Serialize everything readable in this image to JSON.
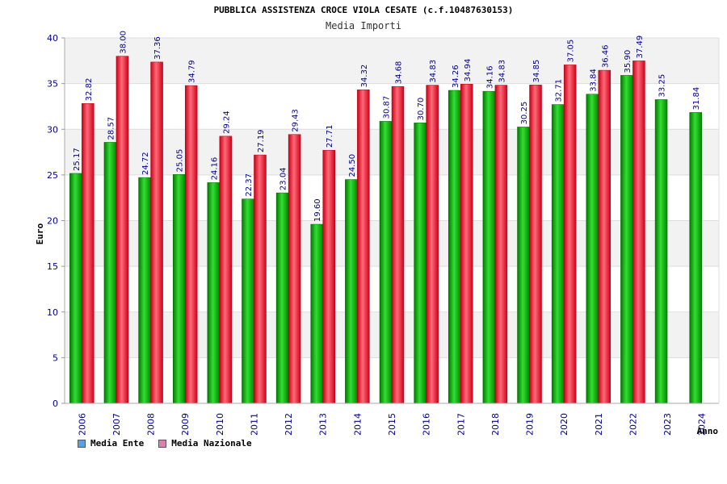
{
  "chart_data": {
    "type": "bar",
    "title": "PUBBLICA ASSISTENZA CROCE VIOLA CESATE (c.f.10487630153)",
    "subtitle": "Media Importi",
    "xlabel": "Anno",
    "ylabel": "Euro",
    "ylim": [
      0,
      40
    ],
    "yticks": [
      "0",
      "5",
      "10",
      "15",
      "20",
      "25",
      "30",
      "35",
      "40"
    ],
    "categories": [
      "2006",
      "2007",
      "2008",
      "2009",
      "2010",
      "2011",
      "2012",
      "2013",
      "2014",
      "2015",
      "2016",
      "2017",
      "2018",
      "2019",
      "2020",
      "2021",
      "2022",
      "2023",
      "2024"
    ],
    "series": [
      {
        "name": "Media Ente",
        "values": [
          25.17,
          28.57,
          24.72,
          25.05,
          24.16,
          22.37,
          23.04,
          19.6,
          24.5,
          30.87,
          30.7,
          34.26,
          34.16,
          30.25,
          32.71,
          33.84,
          35.9,
          33.25,
          31.84
        ],
        "labels": [
          "25.17",
          "28.57",
          "24.72",
          "25.05",
          "24.16",
          "22.37",
          "23.04",
          "19.60",
          "24.50",
          "30.87",
          "30.70",
          "34.26",
          "34.16",
          "30.25",
          "32.71",
          "33.84",
          "35.90",
          "33.25",
          "31.84"
        ]
      },
      {
        "name": "Media Nazionale",
        "values": [
          32.82,
          38.0,
          37.36,
          34.79,
          29.24,
          27.19,
          29.43,
          27.71,
          34.32,
          34.68,
          34.83,
          34.94,
          34.83,
          34.85,
          37.05,
          36.46,
          37.49,
          null,
          null
        ],
        "labels": [
          "32.82",
          "38.00",
          "37.36",
          "34.79",
          "29.24",
          "27.19",
          "29.43",
          "27.71",
          "34.32",
          "34.68",
          "34.83",
          "34.94",
          "34.83",
          "34.85",
          "37.05",
          "36.46",
          "37.49",
          "",
          ""
        ]
      }
    ],
    "legend": [
      {
        "name": "Media Ente",
        "color": "#5aa0e6"
      },
      {
        "name": "Media Nazionale",
        "color": "#e07fb0"
      }
    ],
    "colors": {
      "ente": "#00aa00",
      "nazionale": "#ee2233",
      "band": "#f2f2f2",
      "text": "#00008b"
    }
  }
}
